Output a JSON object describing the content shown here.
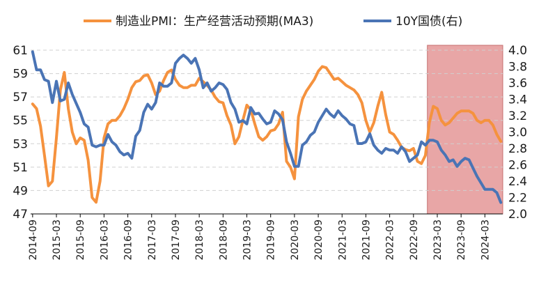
{
  "chart_data": {
    "type": "line",
    "legend_position": "top",
    "grid": true,
    "left_axis": {
      "ylim": [
        47,
        61
      ],
      "ticks": [
        47,
        49,
        51,
        53,
        55,
        57,
        59,
        61
      ]
    },
    "right_axis": {
      "ylim": [
        2.0,
        4.0
      ],
      "ticks": [
        "2.0",
        "2.2",
        "2.4",
        "2.6",
        "2.8",
        "3.0",
        "3.2",
        "3.4",
        "3.6",
        "3.8",
        "4.0"
      ]
    },
    "x_start": "2014-09",
    "x_end": "2024-07",
    "x_tick_labels": [
      "2014-09",
      "2015-03",
      "2015-09",
      "2016-03",
      "2016-09",
      "2017-03",
      "2017-09",
      "2018-03",
      "2018-09",
      "2019-03",
      "2019-09",
      "2020-03",
      "2020-09",
      "2021-03",
      "2021-09",
      "2022-03",
      "2022-09",
      "2023-03",
      "2023-09",
      "2024-03"
    ],
    "highlight": {
      "from": "2023-01",
      "to": "2024-07",
      "color": "#e8a6a6"
    },
    "series": [
      {
        "name": "制造业PMI：生产经营活动预期(MA3)",
        "axis": "left",
        "color": "#f5923e",
        "points": [
          [
            "2014-09",
            56.4
          ],
          [
            "2014-10",
            56.0
          ],
          [
            "2014-11",
            54.5
          ],
          [
            "2014-12",
            52.0
          ],
          [
            "2015-01",
            49.4
          ],
          [
            "2015-02",
            49.8
          ],
          [
            "2015-03",
            53.5
          ],
          [
            "2015-04",
            57.6
          ],
          [
            "2015-05",
            59.1
          ],
          [
            "2015-06",
            56.0
          ],
          [
            "2015-07",
            54.0
          ],
          [
            "2015-08",
            53.0
          ],
          [
            "2015-09",
            53.5
          ],
          [
            "2015-10",
            53.3
          ],
          [
            "2015-11",
            51.6
          ],
          [
            "2015-12",
            48.4
          ],
          [
            "2016-01",
            48.0
          ],
          [
            "2016-02",
            49.8
          ],
          [
            "2016-03",
            53.5
          ],
          [
            "2016-04",
            54.7
          ],
          [
            "2016-05",
            55.0
          ],
          [
            "2016-06",
            55.0
          ],
          [
            "2016-07",
            55.4
          ],
          [
            "2016-08",
            56.0
          ],
          [
            "2016-09",
            56.8
          ],
          [
            "2016-10",
            57.8
          ],
          [
            "2016-11",
            58.3
          ],
          [
            "2016-12",
            58.4
          ],
          [
            "2017-01",
            58.8
          ],
          [
            "2017-02",
            58.9
          ],
          [
            "2017-03",
            58.2
          ],
          [
            "2017-04",
            57.2
          ],
          [
            "2017-05",
            57.5
          ],
          [
            "2017-06",
            58.4
          ],
          [
            "2017-07",
            59.1
          ],
          [
            "2017-08",
            59.3
          ],
          [
            "2017-09",
            58.5
          ],
          [
            "2017-10",
            58.0
          ],
          [
            "2017-11",
            57.8
          ],
          [
            "2017-12",
            57.8
          ],
          [
            "2018-01",
            58.0
          ],
          [
            "2018-02",
            58.0
          ],
          [
            "2018-03",
            58.6
          ],
          [
            "2018-04",
            58.3
          ],
          [
            "2018-05",
            58.0
          ],
          [
            "2018-06",
            57.6
          ],
          [
            "2018-07",
            57.0
          ],
          [
            "2018-08",
            56.6
          ],
          [
            "2018-09",
            56.5
          ],
          [
            "2018-10",
            55.4
          ],
          [
            "2018-11",
            54.6
          ],
          [
            "2018-12",
            53.0
          ],
          [
            "2019-01",
            53.6
          ],
          [
            "2019-02",
            55.0
          ],
          [
            "2019-03",
            56.3
          ],
          [
            "2019-04",
            55.9
          ],
          [
            "2019-05",
            54.7
          ],
          [
            "2019-06",
            53.6
          ],
          [
            "2019-07",
            53.3
          ],
          [
            "2019-08",
            53.6
          ],
          [
            "2019-09",
            54.1
          ],
          [
            "2019-10",
            54.2
          ],
          [
            "2019-11",
            54.7
          ],
          [
            "2019-12",
            55.7
          ],
          [
            "2020-01",
            51.5
          ],
          [
            "2020-02",
            51.0
          ],
          [
            "2020-03",
            50.0
          ],
          [
            "2020-04",
            55.3
          ],
          [
            "2020-05",
            56.8
          ],
          [
            "2020-06",
            57.5
          ],
          [
            "2020-07",
            58.0
          ],
          [
            "2020-08",
            58.5
          ],
          [
            "2020-09",
            59.2
          ],
          [
            "2020-10",
            59.6
          ],
          [
            "2020-11",
            59.5
          ],
          [
            "2020-12",
            59.0
          ],
          [
            "2021-01",
            58.5
          ],
          [
            "2021-02",
            58.6
          ],
          [
            "2021-03",
            58.3
          ],
          [
            "2021-04",
            58.0
          ],
          [
            "2021-05",
            57.8
          ],
          [
            "2021-06",
            57.6
          ],
          [
            "2021-07",
            57.2
          ],
          [
            "2021-08",
            56.5
          ],
          [
            "2021-09",
            55.0
          ],
          [
            "2021-10",
            54.0
          ],
          [
            "2021-11",
            54.8
          ],
          [
            "2021-12",
            56.2
          ],
          [
            "2022-01",
            57.4
          ],
          [
            "2022-02",
            55.5
          ],
          [
            "2022-03",
            54.0
          ],
          [
            "2022-04",
            53.8
          ],
          [
            "2022-05",
            53.3
          ],
          [
            "2022-06",
            52.7
          ],
          [
            "2022-07",
            52.5
          ],
          [
            "2022-08",
            52.4
          ],
          [
            "2022-09",
            52.6
          ],
          [
            "2022-10",
            51.5
          ],
          [
            "2022-11",
            51.3
          ],
          [
            "2022-12",
            52.0
          ],
          [
            "2023-01",
            54.8
          ],
          [
            "2023-02",
            56.2
          ],
          [
            "2023-03",
            56.0
          ],
          [
            "2023-04",
            55.0
          ],
          [
            "2023-05",
            54.6
          ],
          [
            "2023-06",
            54.8
          ],
          [
            "2023-07",
            55.2
          ],
          [
            "2023-08",
            55.6
          ],
          [
            "2023-09",
            55.8
          ],
          [
            "2023-10",
            55.8
          ],
          [
            "2023-11",
            55.8
          ],
          [
            "2023-12",
            55.6
          ],
          [
            "2024-01",
            55.0
          ],
          [
            "2024-02",
            54.8
          ],
          [
            "2024-03",
            55.0
          ],
          [
            "2024-04",
            55.0
          ],
          [
            "2024-05",
            54.6
          ],
          [
            "2024-06",
            53.8
          ],
          [
            "2024-07",
            53.2
          ]
        ]
      },
      {
        "name": "10Y国债(右)",
        "axis": "right",
        "color": "#4a74b5",
        "points": [
          [
            "2014-09",
            3.98
          ],
          [
            "2014-10",
            3.76
          ],
          [
            "2014-11",
            3.76
          ],
          [
            "2014-12",
            3.64
          ],
          [
            "2015-01",
            3.62
          ],
          [
            "2015-02",
            3.36
          ],
          [
            "2015-03",
            3.62
          ],
          [
            "2015-04",
            3.38
          ],
          [
            "2015-05",
            3.4
          ],
          [
            "2015-06",
            3.6
          ],
          [
            "2015-07",
            3.46
          ],
          [
            "2015-08",
            3.35
          ],
          [
            "2015-09",
            3.24
          ],
          [
            "2015-10",
            3.1
          ],
          [
            "2015-11",
            3.06
          ],
          [
            "2015-12",
            2.84
          ],
          [
            "2016-01",
            2.82
          ],
          [
            "2016-02",
            2.84
          ],
          [
            "2016-03",
            2.84
          ],
          [
            "2016-04",
            2.97
          ],
          [
            "2016-05",
            2.88
          ],
          [
            "2016-06",
            2.84
          ],
          [
            "2016-07",
            2.76
          ],
          [
            "2016-08",
            2.72
          ],
          [
            "2016-09",
            2.74
          ],
          [
            "2016-10",
            2.68
          ],
          [
            "2016-11",
            2.95
          ],
          [
            "2016-12",
            3.02
          ],
          [
            "2017-01",
            3.24
          ],
          [
            "2017-02",
            3.34
          ],
          [
            "2017-03",
            3.28
          ],
          [
            "2017-04",
            3.36
          ],
          [
            "2017-05",
            3.6
          ],
          [
            "2017-06",
            3.56
          ],
          [
            "2017-07",
            3.56
          ],
          [
            "2017-08",
            3.6
          ],
          [
            "2017-09",
            3.84
          ],
          [
            "2017-10",
            3.9
          ],
          [
            "2017-11",
            3.94
          ],
          [
            "2017-12",
            3.9
          ],
          [
            "2018-01",
            3.84
          ],
          [
            "2018-02",
            3.9
          ],
          [
            "2018-03",
            3.76
          ],
          [
            "2018-04",
            3.54
          ],
          [
            "2018-05",
            3.6
          ],
          [
            "2018-06",
            3.5
          ],
          [
            "2018-07",
            3.54
          ],
          [
            "2018-08",
            3.6
          ],
          [
            "2018-09",
            3.58
          ],
          [
            "2018-10",
            3.52
          ],
          [
            "2018-11",
            3.36
          ],
          [
            "2018-12",
            3.28
          ],
          [
            "2019-01",
            3.12
          ],
          [
            "2019-02",
            3.14
          ],
          [
            "2019-03",
            3.1
          ],
          [
            "2019-04",
            3.3
          ],
          [
            "2019-05",
            3.22
          ],
          [
            "2019-06",
            3.23
          ],
          [
            "2019-07",
            3.16
          ],
          [
            "2019-08",
            3.1
          ],
          [
            "2019-09",
            3.12
          ],
          [
            "2019-10",
            3.26
          ],
          [
            "2019-11",
            3.22
          ],
          [
            "2019-12",
            3.15
          ],
          [
            "2020-01",
            2.88
          ],
          [
            "2020-02",
            2.74
          ],
          [
            "2020-03",
            2.58
          ],
          [
            "2020-04",
            2.58
          ],
          [
            "2020-05",
            2.84
          ],
          [
            "2020-06",
            2.88
          ],
          [
            "2020-07",
            2.96
          ],
          [
            "2020-08",
            3.0
          ],
          [
            "2020-09",
            3.12
          ],
          [
            "2020-10",
            3.2
          ],
          [
            "2020-11",
            3.28
          ],
          [
            "2020-12",
            3.22
          ],
          [
            "2021-01",
            3.18
          ],
          [
            "2021-02",
            3.26
          ],
          [
            "2021-03",
            3.2
          ],
          [
            "2021-04",
            3.16
          ],
          [
            "2021-05",
            3.1
          ],
          [
            "2021-06",
            3.08
          ],
          [
            "2021-07",
            2.86
          ],
          [
            "2021-08",
            2.86
          ],
          [
            "2021-09",
            2.88
          ],
          [
            "2021-10",
            2.98
          ],
          [
            "2021-11",
            2.84
          ],
          [
            "2021-12",
            2.78
          ],
          [
            "2022-01",
            2.74
          ],
          [
            "2022-02",
            2.8
          ],
          [
            "2022-03",
            2.78
          ],
          [
            "2022-04",
            2.78
          ],
          [
            "2022-05",
            2.74
          ],
          [
            "2022-06",
            2.82
          ],
          [
            "2022-07",
            2.76
          ],
          [
            "2022-08",
            2.64
          ],
          [
            "2022-09",
            2.68
          ],
          [
            "2022-10",
            2.72
          ],
          [
            "2022-11",
            2.88
          ],
          [
            "2022-12",
            2.84
          ],
          [
            "2023-01",
            2.9
          ],
          [
            "2023-02",
            2.9
          ],
          [
            "2023-03",
            2.88
          ],
          [
            "2023-04",
            2.78
          ],
          [
            "2023-05",
            2.72
          ],
          [
            "2023-06",
            2.64
          ],
          [
            "2023-07",
            2.66
          ],
          [
            "2023-08",
            2.58
          ],
          [
            "2023-09",
            2.64
          ],
          [
            "2023-10",
            2.68
          ],
          [
            "2023-11",
            2.66
          ],
          [
            "2023-12",
            2.56
          ],
          [
            "2024-01",
            2.46
          ],
          [
            "2024-02",
            2.38
          ],
          [
            "2024-03",
            2.3
          ],
          [
            "2024-04",
            2.3
          ],
          [
            "2024-05",
            2.3
          ],
          [
            "2024-06",
            2.26
          ],
          [
            "2024-07",
            2.14
          ]
        ]
      }
    ]
  }
}
